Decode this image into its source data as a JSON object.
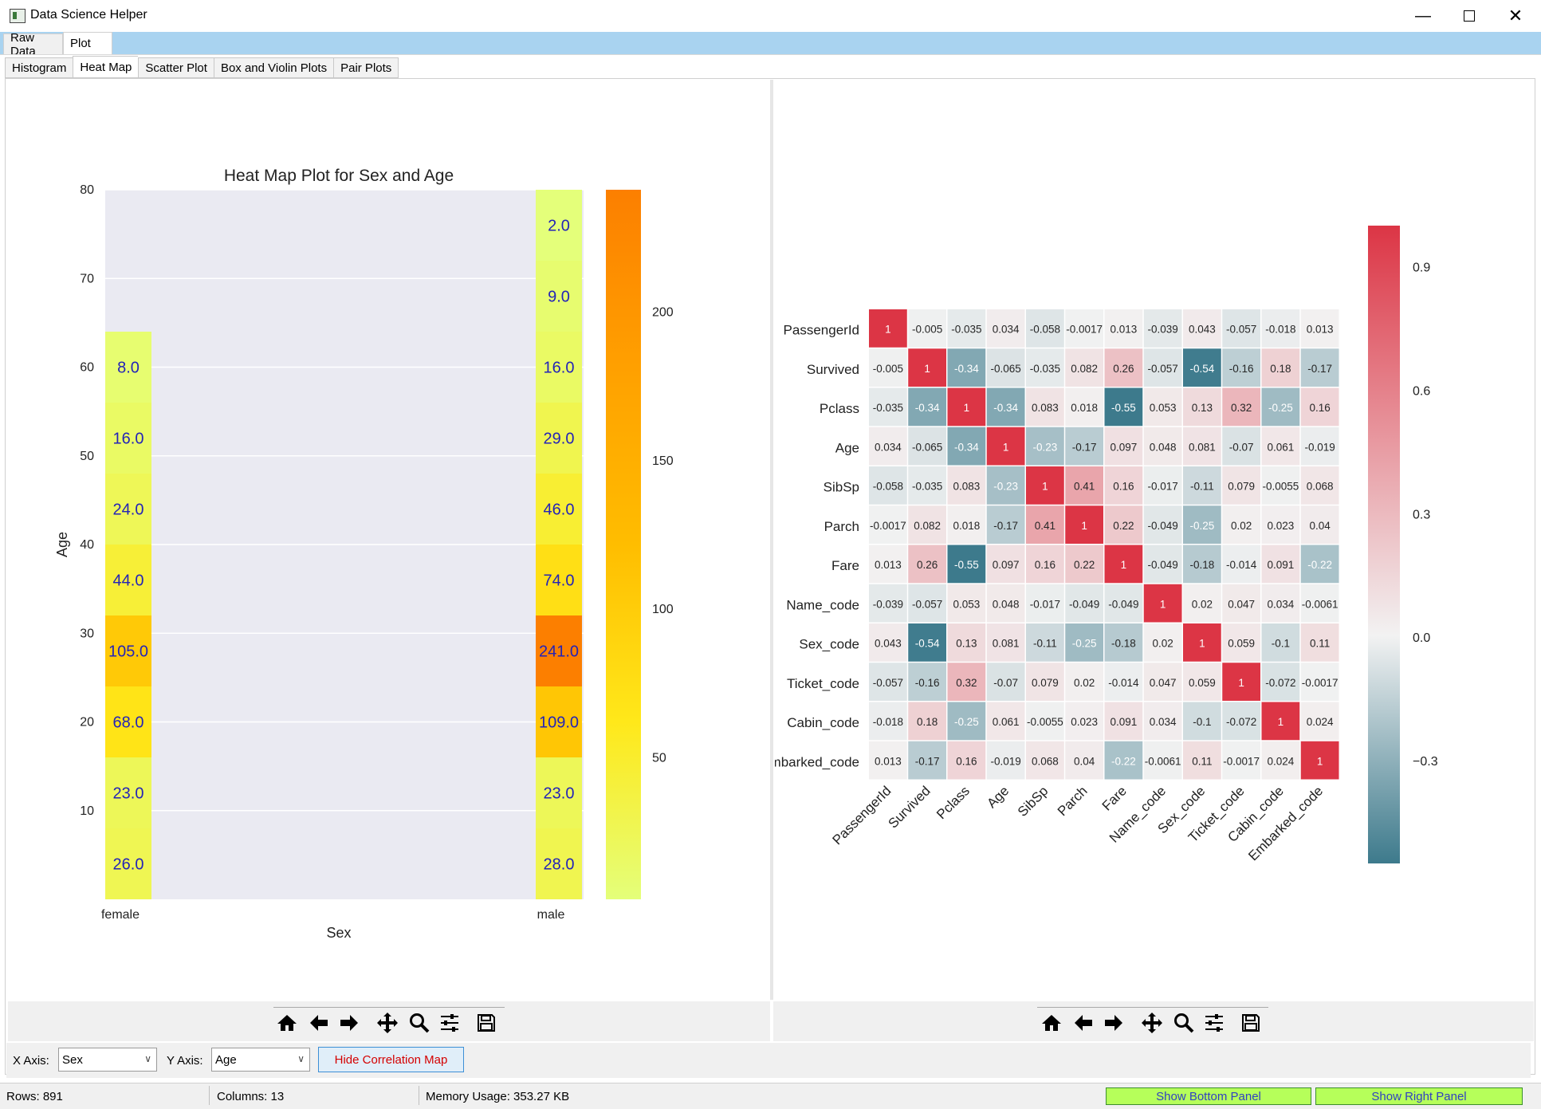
{
  "window": {
    "title": "Data Science Helper",
    "minimize_icon": "minimize-icon",
    "maximize_icon": "maximize-icon",
    "close_icon": "close-icon"
  },
  "main_tabs": [
    {
      "label": "Raw Data",
      "active": false
    },
    {
      "label": "Plot",
      "active": true
    }
  ],
  "plot_tabs": [
    {
      "label": "Histogram",
      "active": false
    },
    {
      "label": "Heat Map",
      "active": true
    },
    {
      "label": "Scatter Plot",
      "active": false
    },
    {
      "label": "Box and Violin Plots",
      "active": false
    },
    {
      "label": "Pair Plots",
      "active": false
    }
  ],
  "toolbar_icons": [
    "home-icon",
    "back-arrow-icon",
    "forward-arrow-icon",
    "pan-icon",
    "zoom-icon",
    "configure-icon",
    "save-icon"
  ],
  "controls": {
    "x_axis_label": "X Axis:",
    "x_axis_value": "Sex",
    "y_axis_label": "Y Axis:",
    "y_axis_value": "Age",
    "hide_corr_label": "Hide Correlation Map"
  },
  "status": {
    "rows": "Rows: 891",
    "columns": "Columns: 13",
    "memory": "Memory Usage: 353.27 KB",
    "show_bottom": "Show Bottom Panel",
    "show_right": "Show Right Panel",
    "button_color": "#b6ff5a"
  },
  "chart_data": [
    {
      "type": "heatmap",
      "title": "Heat Map Plot for Sex and Age",
      "xlabel": "Sex",
      "ylabel": "Age",
      "categories": [
        "female",
        "male"
      ],
      "ylim": [
        0,
        80
      ],
      "yticks": [
        "10",
        "20",
        "30",
        "40",
        "50",
        "60",
        "70",
        "80"
      ],
      "colorbar_ticks": [
        "50",
        "100",
        "150",
        "200"
      ],
      "colorbar_range": [
        2,
        241
      ],
      "colormap": "Wistia",
      "series": [
        {
          "name": "female",
          "bins": [
            [
              0,
              8,
              26
            ],
            [
              8,
              16,
              23
            ],
            [
              16,
              24,
              68
            ],
            [
              24,
              32,
              105
            ],
            [
              32,
              40,
              44
            ],
            [
              40,
              48,
              24
            ],
            [
              48,
              56,
              16
            ],
            [
              56,
              64,
              8
            ]
          ]
        },
        {
          "name": "male",
          "bins": [
            [
              0,
              8,
              28
            ],
            [
              8,
              16,
              23
            ],
            [
              16,
              24,
              109
            ],
            [
              24,
              32,
              241
            ],
            [
              32,
              40,
              74
            ],
            [
              40,
              48,
              46
            ],
            [
              48,
              56,
              29
            ],
            [
              56,
              64,
              16
            ],
            [
              64,
              72,
              9
            ],
            [
              72,
              80,
              2
            ]
          ]
        }
      ],
      "cell_labels": {
        "female": [
          "26.0",
          "23.0",
          "68.0",
          "105.0",
          "44.0",
          "24.0",
          "16.0",
          "8.0"
        ],
        "male": [
          "28.0",
          "23.0",
          "109.0",
          "241.0",
          "74.0",
          "46.0",
          "29.0",
          "16.0",
          "9.0",
          "2.0"
        ]
      }
    },
    {
      "type": "heatmap",
      "title": "",
      "labels": [
        "PassengerId",
        "Survived",
        "Pclass",
        "Age",
        "SibSp",
        "Parch",
        "Fare",
        "Name_code",
        "Sex_code",
        "Ticket_code",
        "Cabin_code",
        "Embarked_code"
      ],
      "row_labels_display": [
        "PassengerId",
        "Survived",
        "Pclass",
        "Age",
        "SibSp",
        "Parch",
        "Fare",
        "Name_code",
        "Sex_code",
        "Ticket_code",
        "Cabin_code",
        "mbarked_code"
      ],
      "colorbar_ticks": [
        "0.9",
        "0.6",
        "0.3",
        "0.0",
        "−0.3"
      ],
      "colorbar_range": [
        -0.55,
        1.0
      ],
      "colors": {
        "negative": "#3d7a8c",
        "neutral": "#f2f2f2",
        "positive": "#dc3545"
      },
      "matrix": [
        [
          "1",
          "-0.005",
          "-0.035",
          "0.034",
          "-0.058",
          "-0.0017",
          "0.013",
          "-0.039",
          "0.043",
          "-0.057",
          "-0.018",
          "0.013"
        ],
        [
          "-0.005",
          "1",
          "-0.34",
          "-0.065",
          "-0.035",
          "0.082",
          "0.26",
          "-0.057",
          "-0.54",
          "-0.16",
          "0.18",
          "-0.17"
        ],
        [
          "-0.035",
          "-0.34",
          "1",
          "-0.34",
          "0.083",
          "0.018",
          "-0.55",
          "0.053",
          "0.13",
          "0.32",
          "-0.25",
          "0.16"
        ],
        [
          "0.034",
          "-0.065",
          "-0.34",
          "1",
          "-0.23",
          "-0.17",
          "0.097",
          "0.048",
          "0.081",
          "-0.07",
          "0.061",
          "-0.019"
        ],
        [
          "-0.058",
          "-0.035",
          "0.083",
          "-0.23",
          "1",
          "0.41",
          "0.16",
          "-0.017",
          "-0.11",
          "0.079",
          "-0.0055",
          "0.068"
        ],
        [
          "-0.0017",
          "0.082",
          "0.018",
          "-0.17",
          "0.41",
          "1",
          "0.22",
          "-0.049",
          "-0.25",
          "0.02",
          "0.023",
          "0.04"
        ],
        [
          "0.013",
          "0.26",
          "-0.55",
          "0.097",
          "0.16",
          "0.22",
          "1",
          "-0.049",
          "-0.18",
          "-0.014",
          "0.091",
          "-0.22"
        ],
        [
          "-0.039",
          "-0.057",
          "0.053",
          "0.048",
          "-0.017",
          "-0.049",
          "-0.049",
          "1",
          "0.02",
          "0.047",
          "0.034",
          "-0.0061"
        ],
        [
          "0.043",
          "-0.54",
          "0.13",
          "0.081",
          "-0.11",
          "-0.25",
          "-0.18",
          "0.02",
          "1",
          "0.059",
          "-0.1",
          "0.11"
        ],
        [
          "-0.057",
          "-0.16",
          "0.32",
          "-0.07",
          "0.079",
          "0.02",
          "-0.014",
          "0.047",
          "0.059",
          "1",
          "-0.072",
          "-0.0017"
        ],
        [
          "-0.018",
          "0.18",
          "-0.25",
          "0.061",
          "-0.0055",
          "0.023",
          "0.091",
          "0.034",
          "-0.1",
          "-0.072",
          "1",
          "0.024"
        ],
        [
          "0.013",
          "-0.17",
          "0.16",
          "-0.019",
          "0.068",
          "0.04",
          "-0.22",
          "-0.0061",
          "0.11",
          "-0.0017",
          "0.024",
          "1"
        ]
      ]
    }
  ]
}
